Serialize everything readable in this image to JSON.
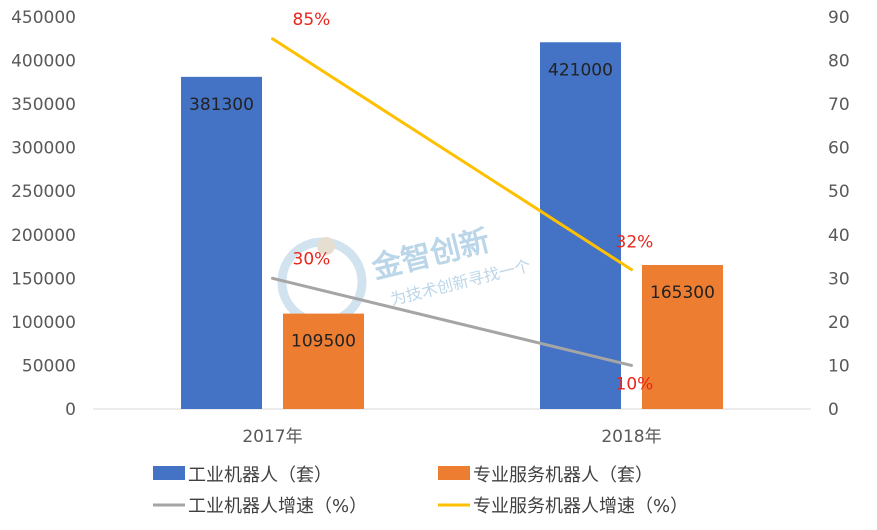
{
  "chart_data": {
    "type": "bar",
    "categories": [
      "2017年",
      "2018年"
    ],
    "series": [
      {
        "name": "工业机器人（套）",
        "kind": "bar",
        "axis": "left",
        "color": "#4472c4",
        "values": [
          381300,
          421000
        ],
        "labels": [
          "381300",
          "421000"
        ]
      },
      {
        "name": "专业服务机器人（套）",
        "kind": "bar",
        "axis": "left",
        "color": "#ed7d31",
        "values": [
          109500,
          165300
        ],
        "labels": [
          "109500",
          "165300"
        ]
      },
      {
        "name": "工业机器人增速（%）",
        "kind": "line",
        "axis": "right",
        "color": "#a5a5a5",
        "values": [
          30,
          10
        ],
        "labels": [
          "30%",
          "10%"
        ]
      },
      {
        "name": "专业服务机器人增速（%）",
        "kind": "line",
        "axis": "right",
        "color": "#ffc000",
        "values": [
          85,
          32
        ],
        "labels": [
          "85%",
          "32%"
        ]
      }
    ],
    "y_left": {
      "range": [
        0,
        450000
      ],
      "ticks": [
        "0",
        "50000",
        "100000",
        "150000",
        "200000",
        "250000",
        "300000",
        "350000",
        "400000",
        "450000"
      ]
    },
    "y_right": {
      "range": [
        0,
        90
      ],
      "ticks": [
        "0",
        "10",
        "20",
        "30",
        "40",
        "50",
        "60",
        "70",
        "80",
        "90"
      ]
    },
    "grid": false,
    "legend_position": "bottom",
    "label_color": "#e8261c"
  },
  "watermark": {
    "title": "金智创新",
    "subtitle": "为技术创新寻找一个"
  }
}
